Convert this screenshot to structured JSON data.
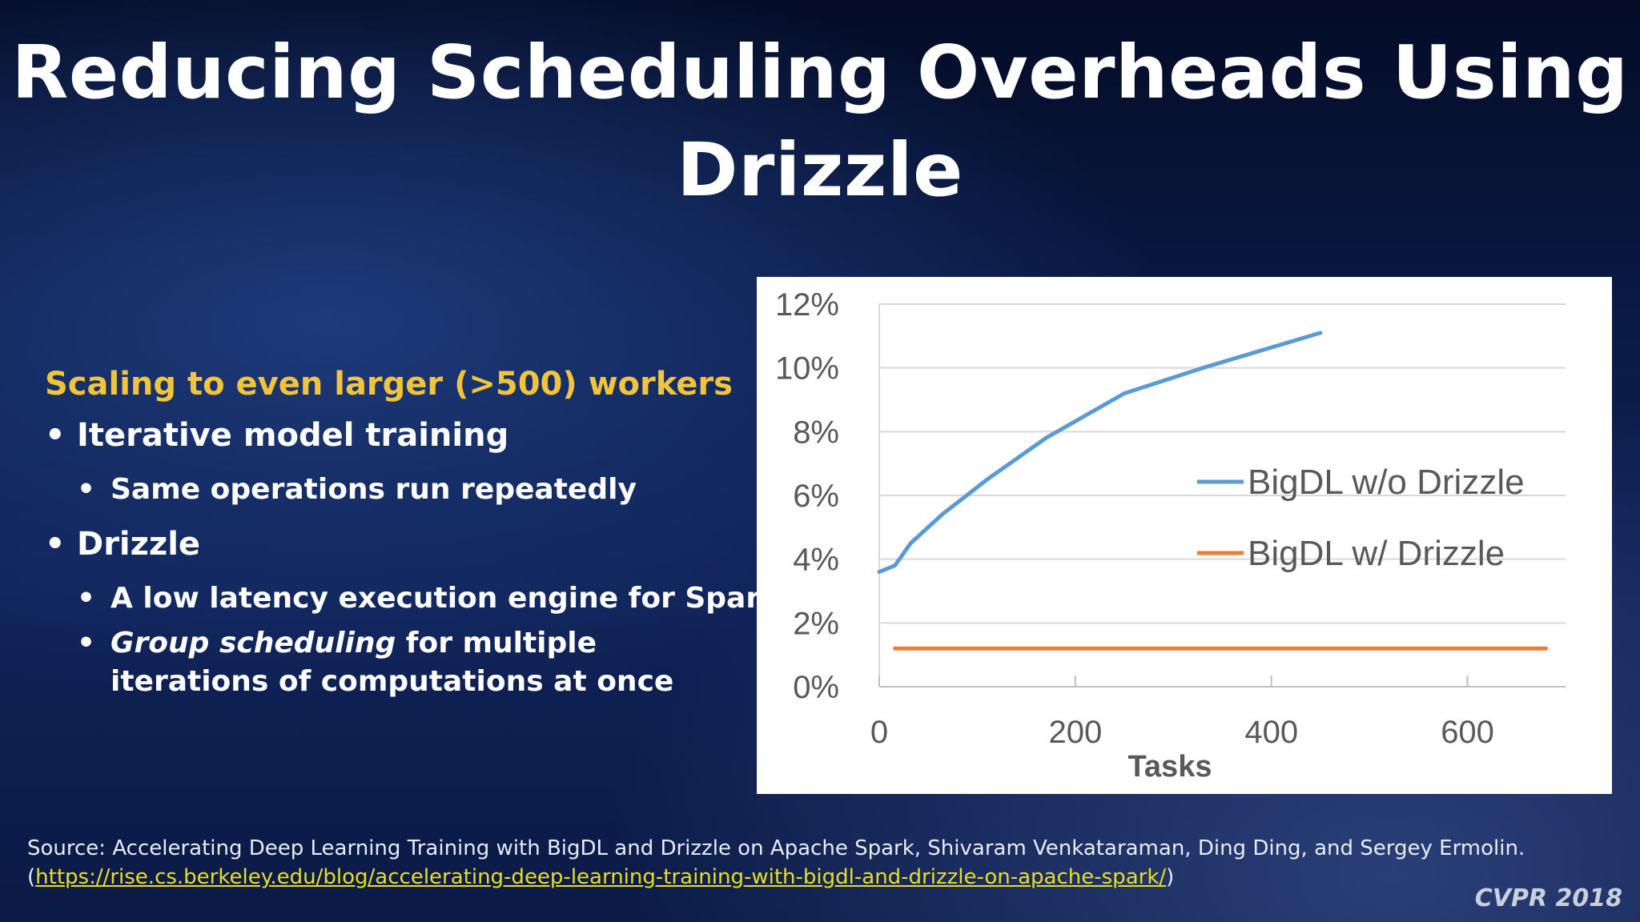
{
  "slide": {
    "title": "Reducing Scheduling Overheads Using Drizzle"
  },
  "content": {
    "subheading": "Scaling to even larger (>500) workers",
    "bullets": [
      {
        "text": "Iterative model training",
        "sub": [
          {
            "text": "Same operations run repeatedly"
          }
        ]
      },
      {
        "text": "Drizzle",
        "sub": [
          {
            "text": "A low latency execution engine for Spark"
          },
          {
            "text_italic": "Group scheduling",
            "text_rest": " for multiple iterations of computations at once"
          }
        ]
      }
    ],
    "bullet_char": "•"
  },
  "source": {
    "prefix": "Source: Accelerating Deep Learning Training with BigDL and Drizzle on Apache Spark, Shivaram Venkataraman, Ding Ding, and Sergey Ermolin.",
    "paren_open": "(",
    "url": "https://rise.cs.berkeley.edu/blog/accelerating-deep-learning-training-with-bigdl-and-drizzle-on-apache-spark/",
    "paren_close": ")"
  },
  "conference_tag": "CVPR 2018",
  "colors": {
    "title": "#ffffff",
    "subheading": "#f2c43a",
    "link": "#e6e01f",
    "series_without": "#5b9bd5",
    "series_with": "#ed7d31"
  },
  "chart_data": {
    "type": "line",
    "title": "",
    "xlabel": "Tasks",
    "ylabel": "",
    "xlim": [
      0,
      700
    ],
    "ylim": [
      0,
      12
    ],
    "x_ticks": [
      0,
      200,
      400,
      600
    ],
    "y_ticks": [
      0,
      2,
      4,
      6,
      8,
      10,
      12
    ],
    "y_tick_suffix": "%",
    "grid": "horizontal",
    "legend_position": "right",
    "series": [
      {
        "name": "BigDL w/o Drizzle",
        "color": "#5b9bd5",
        "x": [
          0,
          16,
          32,
          64,
          110,
          170,
          250,
          330,
          450
        ],
        "y": [
          3.6,
          3.8,
          4.5,
          5.4,
          6.5,
          7.8,
          9.2,
          10.0,
          11.1
        ]
      },
      {
        "name": "BigDL w/ Drizzle",
        "color": "#ed7d31",
        "x": [
          16,
          680
        ],
        "y": [
          1.2,
          1.2
        ]
      }
    ]
  }
}
